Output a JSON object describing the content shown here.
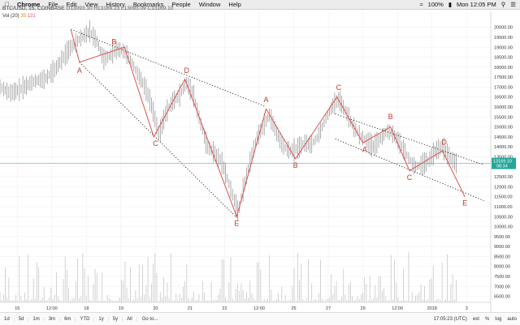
{
  "menubar": {
    "app": "Chrome",
    "items": [
      "File",
      "Edit",
      "View",
      "History",
      "Bookmarks",
      "People",
      "Window",
      "Help"
    ],
    "battery": "100%",
    "clock": "Mon 12:05 PM"
  },
  "header": {
    "symbol": "BTC/USD, 15, COINBASE",
    "ohlc": "O13093.10 H13169.23 L13093.09 C13169.10",
    "vol_label": "Vol (20)",
    "vol_a": "35",
    "vol_b": "131"
  },
  "price_tag": {
    "value": "13169.10",
    "time": "08:34",
    "color": "#26a69a"
  },
  "bottombar": {
    "timeframes": [
      "1d",
      "5d",
      "1m",
      "3m",
      "6m",
      "YTD",
      "1y",
      "5y",
      "All"
    ],
    "goto": "Go to...",
    "clock": "17:05:23 (UTC)",
    "options": [
      "ext",
      "%",
      "log",
      "auto"
    ]
  },
  "colors": {
    "wave": "#d9534f",
    "candle": "#888888",
    "price_line": "#26a69a",
    "volume": "#c8c8c8"
  },
  "chart_data": {
    "type": "line",
    "y_ticks": [
      20000,
      19500,
      19000,
      18500,
      18000,
      17500,
      17000,
      16500,
      16000,
      15500,
      15000,
      14500,
      14000,
      13500,
      13000,
      12500,
      12000,
      11500,
      11000,
      10500,
      10000,
      9500,
      9000,
      8500,
      8000,
      7500,
      7000,
      6500
    ],
    "x_ticks": [
      {
        "x": 0.5,
        "label": "15"
      },
      {
        "x": 1.5,
        "label": "12:00"
      },
      {
        "x": 2.5,
        "label": "18"
      },
      {
        "x": 3.5,
        "label": "19"
      },
      {
        "x": 4.5,
        "label": "20"
      },
      {
        "x": 5.5,
        "label": "21"
      },
      {
        "x": 6.5,
        "label": "22"
      },
      {
        "x": 7.5,
        "label": "12:00"
      },
      {
        "x": 8.5,
        "label": "25"
      },
      {
        "x": 9.5,
        "label": "27"
      },
      {
        "x": 10.5,
        "label": "29"
      },
      {
        "x": 11.5,
        "label": "12:00"
      },
      {
        "x": 12.5,
        "label": "2018"
      },
      {
        "x": 13.5,
        "label": "3"
      }
    ],
    "xlim": [
      0,
      14.2
    ],
    "ylim": [
      6200,
      20800
    ],
    "price_series": [
      [
        0.0,
        17000
      ],
      [
        0.3,
        16700
      ],
      [
        0.6,
        16900
      ],
      [
        1.0,
        17300
      ],
      [
        1.3,
        17400
      ],
      [
        1.6,
        17900
      ],
      [
        2.0,
        18900
      ],
      [
        2.3,
        19400
      ],
      [
        2.6,
        19800
      ],
      [
        2.8,
        19300
      ],
      [
        3.0,
        18400
      ],
      [
        3.2,
        18600
      ],
      [
        3.4,
        18900
      ],
      [
        3.6,
        18800
      ],
      [
        3.8,
        18300
      ],
      [
        4.0,
        17600
      ],
      [
        4.2,
        17000
      ],
      [
        4.4,
        16000
      ],
      [
        4.6,
        14600
      ],
      [
        4.8,
        15700
      ],
      [
        5.0,
        16300
      ],
      [
        5.2,
        16600
      ],
      [
        5.4,
        17200
      ],
      [
        5.6,
        16600
      ],
      [
        5.8,
        15200
      ],
      [
        6.0,
        14000
      ],
      [
        6.2,
        13700
      ],
      [
        6.4,
        13300
      ],
      [
        6.6,
        12300
      ],
      [
        6.8,
        11200
      ],
      [
        6.9,
        10700
      ],
      [
        7.0,
        11600
      ],
      [
        7.2,
        13000
      ],
      [
        7.4,
        14300
      ],
      [
        7.6,
        15000
      ],
      [
        7.8,
        15600
      ],
      [
        8.0,
        14700
      ],
      [
        8.2,
        14000
      ],
      [
        8.4,
        13800
      ],
      [
        8.6,
        13900
      ],
      [
        8.8,
        14200
      ],
      [
        9.0,
        14100
      ],
      [
        9.2,
        14500
      ],
      [
        9.4,
        15300
      ],
      [
        9.6,
        16000
      ],
      [
        9.8,
        16400
      ],
      [
        10.0,
        15800
      ],
      [
        10.2,
        15100
      ],
      [
        10.4,
        14600
      ],
      [
        10.6,
        14300
      ],
      [
        10.8,
        14000
      ],
      [
        11.0,
        14400
      ],
      [
        11.2,
        14800
      ],
      [
        11.4,
        14600
      ],
      [
        11.6,
        14100
      ],
      [
        11.8,
        13500
      ],
      [
        12.0,
        13000
      ],
      [
        12.2,
        13100
      ],
      [
        12.4,
        13300
      ],
      [
        12.6,
        13800
      ],
      [
        12.8,
        14000
      ],
      [
        13.0,
        13500
      ],
      [
        13.2,
        13169
      ]
    ],
    "wave_lines": [
      {
        "points": [
          [
            2.05,
            19900
          ],
          [
            2.3,
            18250
          ],
          [
            3.25,
            18800
          ],
          [
            3.6,
            19000
          ],
          [
            4.45,
            14500
          ],
          [
            5.35,
            17400
          ],
          [
            6.85,
            10500
          ],
          [
            7.7,
            15900
          ],
          [
            8.55,
            13400
          ],
          [
            9.75,
            16500
          ],
          [
            10.5,
            14200
          ],
          [
            11.3,
            15000
          ],
          [
            11.85,
            12800
          ],
          [
            12.8,
            13800
          ],
          [
            13.45,
            11500
          ]
        ]
      }
    ],
    "trend_lines": [
      {
        "points": [
          [
            2.05,
            19900
          ],
          [
            7.65,
            16050
          ]
        ]
      },
      {
        "points": [
          [
            2.3,
            18250
          ],
          [
            6.85,
            10450
          ]
        ]
      },
      {
        "points": [
          [
            9.7,
            15650
          ],
          [
            14.0,
            13100
          ]
        ]
      },
      {
        "points": [
          [
            9.7,
            14400
          ],
          [
            14.0,
            11300
          ]
        ]
      }
    ],
    "wave_labels": [
      {
        "text": "A",
        "x": 2.3,
        "y": 17700
      },
      {
        "text": "B",
        "x": 3.3,
        "y": 19150
      },
      {
        "text": "C",
        "x": 4.5,
        "y": 14050
      },
      {
        "text": "D",
        "x": 5.4,
        "y": 17700
      },
      {
        "text": "E",
        "x": 6.85,
        "y": 10050
      },
      {
        "text": "A",
        "x": 7.7,
        "y": 16250
      },
      {
        "text": "B",
        "x": 8.55,
        "y": 12950
      },
      {
        "text": "C",
        "x": 9.8,
        "y": 16850
      },
      {
        "text": "A",
        "x": 10.55,
        "y": 13750
      },
      {
        "text": "B",
        "x": 11.3,
        "y": 15400
      },
      {
        "text": "C",
        "x": 11.85,
        "y": 12350
      },
      {
        "text": "D",
        "x": 12.85,
        "y": 14100
      },
      {
        "text": "E",
        "x": 13.45,
        "y": 11050
      }
    ],
    "last_price": 13169.1
  }
}
